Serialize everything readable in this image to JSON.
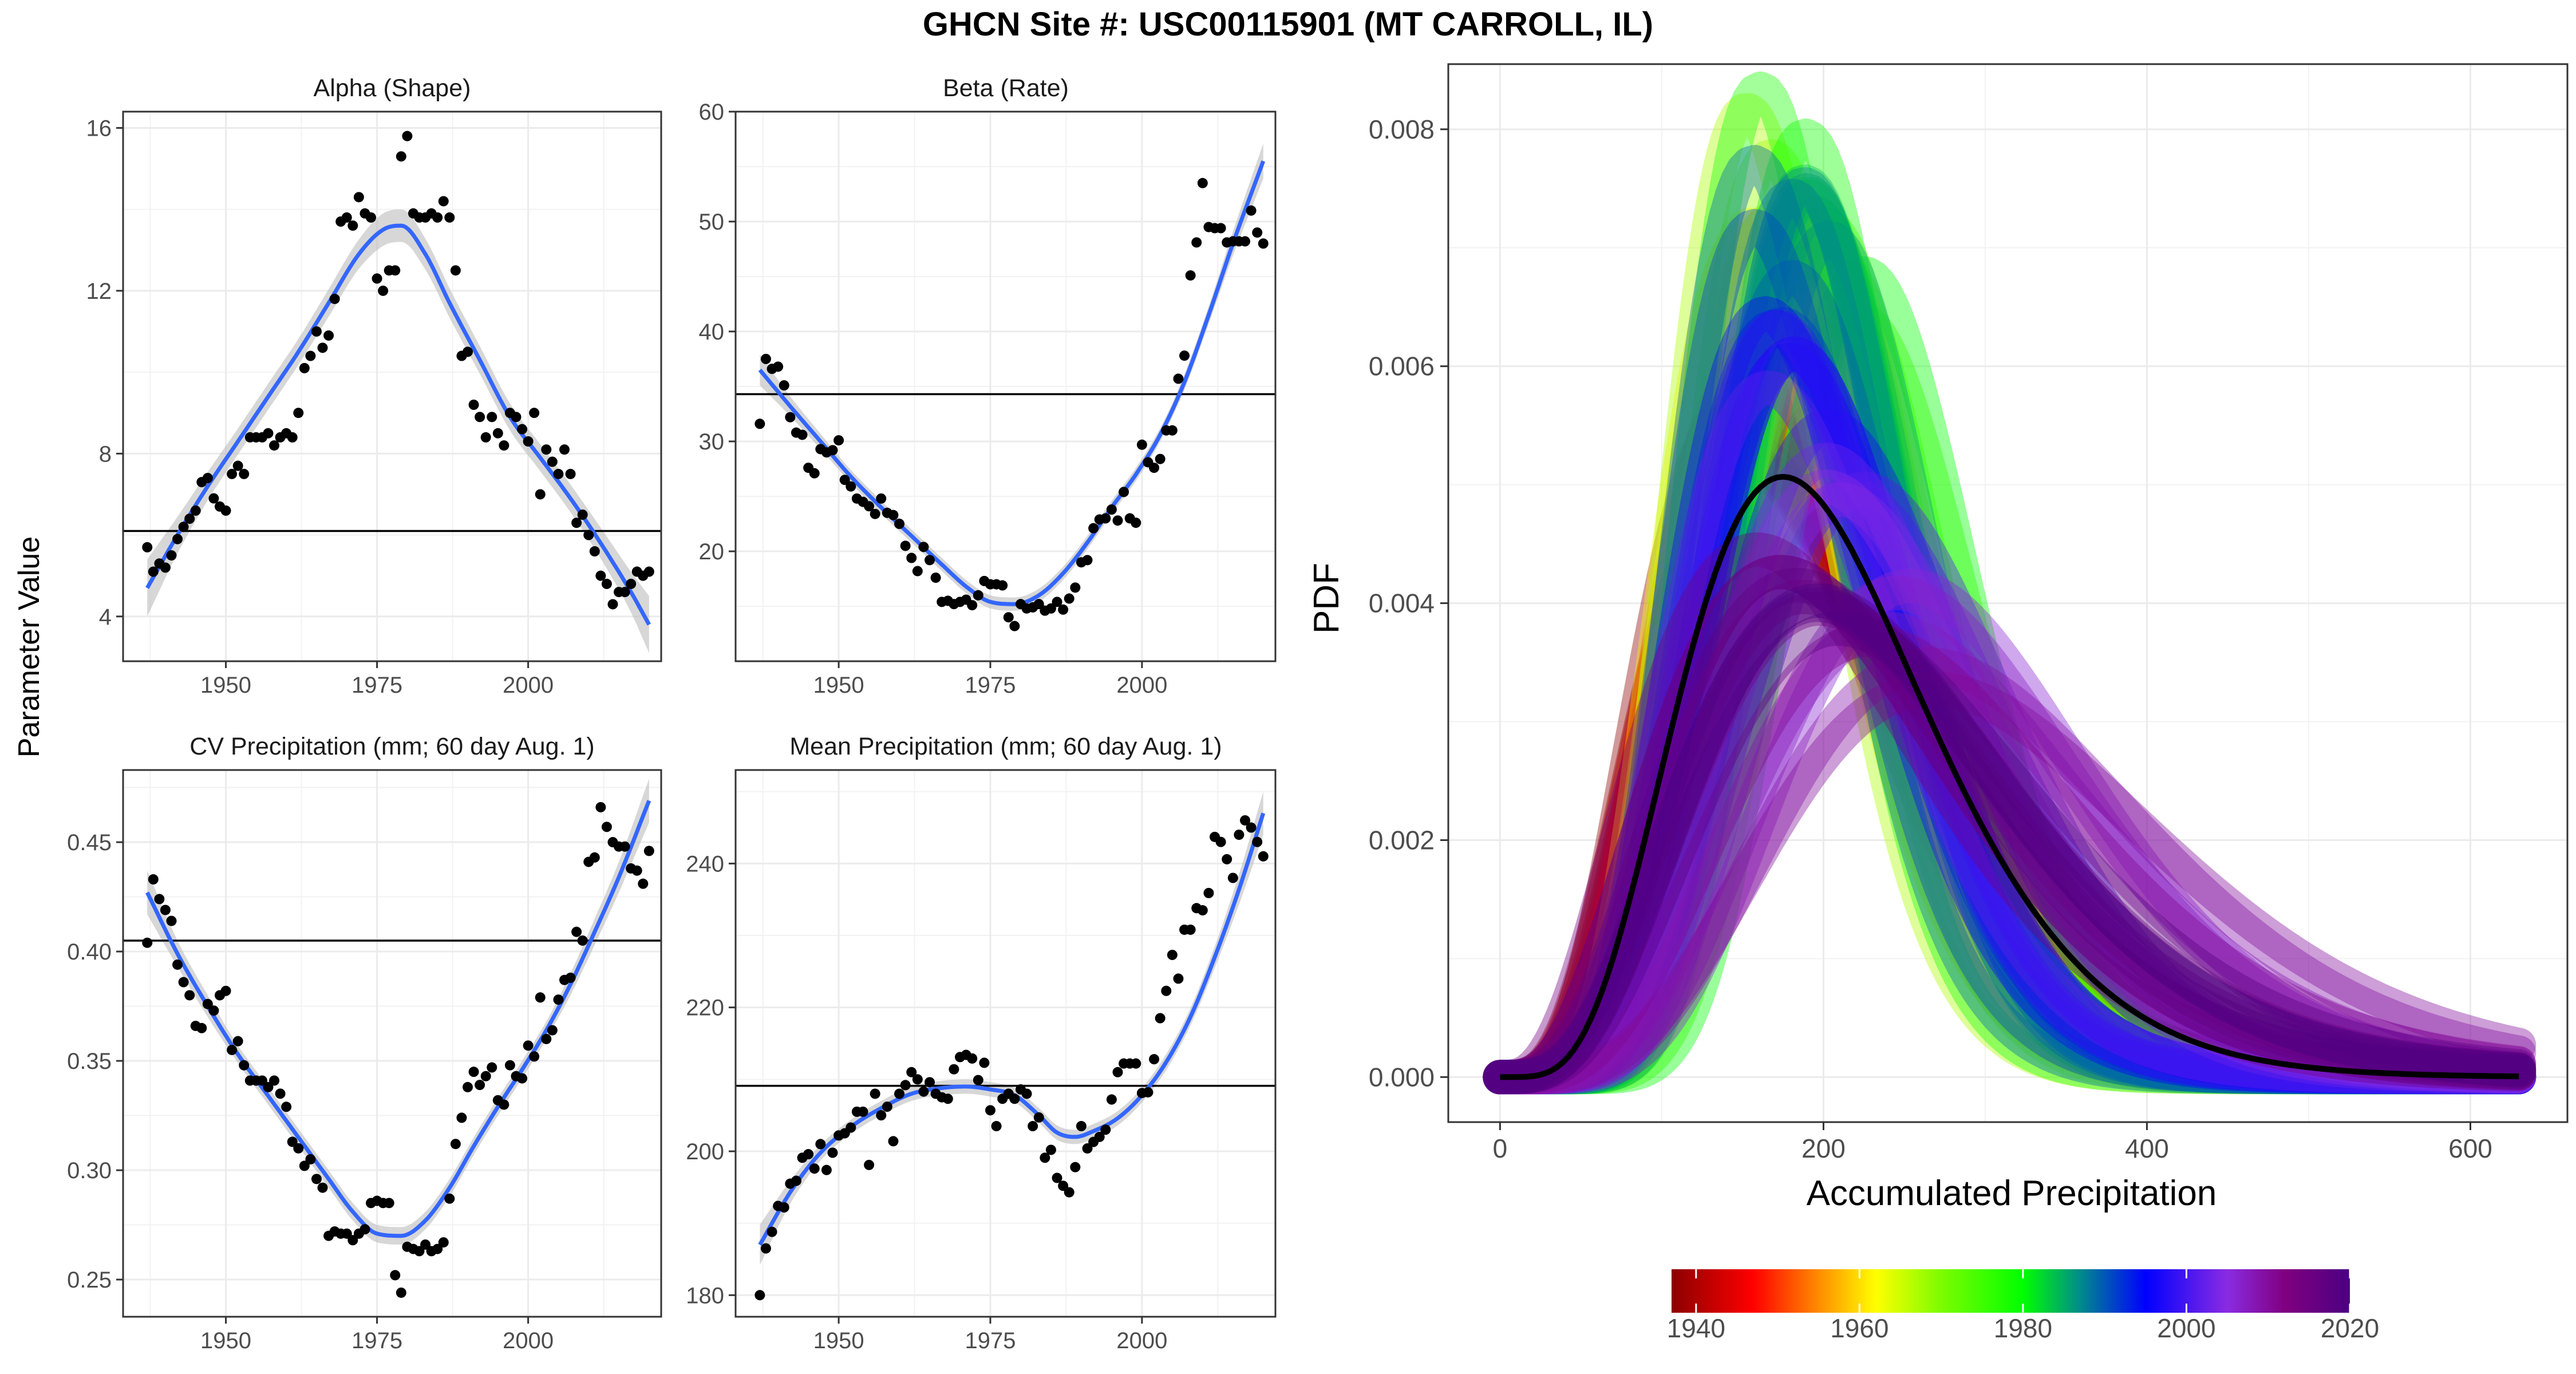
{
  "title": "GHCN Site #: USC00115901 (MT CARROLL, IL)",
  "shared_ylabel": "Parameter Value",
  "colors": {
    "smooth": "#3366ff",
    "ribbon": "#bdbdbd",
    "points": "#000000",
    "refline": "#000000"
  },
  "chart_data": [
    {
      "id": "alpha",
      "type": "scatter",
      "title": "Alpha (Shape)",
      "xlim": [
        1933,
        2022
      ],
      "ylim": [
        2.9,
        16.4
      ],
      "xticks": [
        1950,
        1975,
        2000
      ],
      "yticks": [
        4,
        8,
        12,
        16
      ],
      "hline": 6.1,
      "x": [
        1937,
        1938,
        1939,
        1940,
        1941,
        1942,
        1943,
        1944,
        1945,
        1946,
        1947,
        1948,
        1949,
        1950,
        1951,
        1952,
        1953,
        1954,
        1955,
        1956,
        1957,
        1958,
        1959,
        1960,
        1961,
        1962,
        1963,
        1964,
        1965,
        1966,
        1967,
        1968,
        1969,
        1970,
        1971,
        1972,
        1973,
        1974,
        1975,
        1976,
        1977,
        1978,
        1979,
        1980,
        1981,
        1982,
        1983,
        1984,
        1985,
        1986,
        1987,
        1988,
        1989,
        1990,
        1991,
        1992,
        1993,
        1994,
        1995,
        1996,
        1997,
        1998,
        1999,
        2000,
        2001,
        2002,
        2003,
        2004,
        2005,
        2006,
        2007,
        2008,
        2009,
        2010,
        2011,
        2012,
        2013,
        2014,
        2015,
        2016,
        2017,
        2018,
        2019,
        2020
      ],
      "y": [
        5.7,
        5.1,
        5.3,
        5.2,
        5.5,
        5.9,
        6.2,
        6.4,
        6.6,
        7.3,
        7.4,
        6.9,
        6.7,
        6.6,
        7.5,
        7.7,
        7.5,
        8.4,
        8.4,
        8.4,
        8.5,
        8.2,
        8.4,
        8.5,
        8.4,
        9.0,
        10.1,
        10.4,
        11.0,
        10.6,
        10.9,
        11.8,
        13.7,
        13.8,
        13.6,
        14.3,
        13.9,
        13.8,
        12.3,
        12.0,
        12.5,
        12.5,
        15.3,
        15.8,
        13.9,
        13.8,
        13.8,
        13.9,
        13.8,
        14.2,
        13.8,
        12.5,
        10.4,
        10.5,
        9.2,
        8.9,
        8.4,
        8.9,
        8.5,
        8.2,
        9.0,
        8.9,
        8.6,
        8.3,
        9.0,
        7.0,
        8.1,
        7.8,
        7.5,
        8.1,
        7.5,
        6.3,
        6.5,
        6.0,
        5.6,
        5.0,
        4.8,
        4.3,
        4.6,
        4.6,
        4.8,
        5.1,
        5.0,
        5.1
      ],
      "smooth_x": [
        1937,
        1942,
        1947,
        1952,
        1957,
        1962,
        1967,
        1972,
        1976,
        1979,
        1983,
        1987,
        1992,
        1997,
        2002,
        2007,
        2012,
        2017,
        2020
      ],
      "smooth_y": [
        4.7,
        6.0,
        7.2,
        8.3,
        9.4,
        10.5,
        11.7,
        12.9,
        13.5,
        13.6,
        12.9,
        11.7,
        10.3,
        8.9,
        7.9,
        6.9,
        5.8,
        4.6,
        3.8
      ],
      "smooth_se": [
        0.7,
        0.45,
        0.35,
        0.32,
        0.32,
        0.32,
        0.34,
        0.36,
        0.4,
        0.4,
        0.38,
        0.36,
        0.34,
        0.33,
        0.33,
        0.34,
        0.38,
        0.5,
        0.7
      ]
    },
    {
      "id": "beta",
      "type": "scatter",
      "title": "Beta (Rate)",
      "xlim": [
        1933,
        2022
      ],
      "ylim": [
        10,
        60
      ],
      "xticks": [
        1950,
        1975,
        2000
      ],
      "yticks": [
        20,
        30,
        40,
        50,
        60
      ],
      "hline": 34.3,
      "x": [
        1937,
        1938,
        1939,
        1940,
        1941,
        1942,
        1943,
        1944,
        1945,
        1946,
        1947,
        1948,
        1949,
        1950,
        1951,
        1952,
        1953,
        1954,
        1955,
        1956,
        1957,
        1958,
        1959,
        1960,
        1961,
        1962,
        1963,
        1964,
        1965,
        1966,
        1967,
        1968,
        1969,
        1970,
        1971,
        1972,
        1973,
        1974,
        1975,
        1976,
        1977,
        1978,
        1979,
        1980,
        1981,
        1982,
        1983,
        1984,
        1985,
        1986,
        1987,
        1988,
        1989,
        1990,
        1991,
        1992,
        1993,
        1994,
        1995,
        1996,
        1997,
        1998,
        1999,
        2000,
        2001,
        2002,
        2003,
        2004,
        2005,
        2006,
        2007,
        2008,
        2009,
        2010,
        2011,
        2012,
        2013,
        2014,
        2015,
        2016,
        2017,
        2018,
        2019,
        2020
      ],
      "y": [
        31.6,
        37.5,
        36.6,
        36.8,
        35.1,
        32.2,
        30.8,
        30.6,
        27.6,
        27.1,
        29.3,
        29.0,
        29.2,
        30.1,
        26.5,
        25.9,
        24.8,
        24.5,
        24.1,
        23.4,
        24.8,
        23.5,
        23.3,
        22.5,
        20.5,
        19.4,
        18.2,
        20.4,
        19.2,
        17.6,
        15.4,
        15.5,
        15.2,
        15.4,
        15.6,
        15.1,
        16.0,
        17.3,
        17.0,
        17.0,
        16.9,
        14.0,
        13.2,
        15.2,
        14.8,
        14.9,
        15.2,
        14.6,
        14.8,
        15.4,
        14.7,
        15.7,
        16.7,
        19.0,
        19.2,
        22.1,
        22.9,
        23.0,
        23.8,
        22.8,
        25.4,
        23.0,
        22.6,
        29.7,
        28.1,
        27.6,
        28.4,
        31.0,
        31.0,
        35.7,
        37.8,
        45.1,
        48.1,
        53.5,
        49.5,
        49.4,
        49.4,
        48.1,
        48.2,
        48.2,
        48.2,
        51.0,
        49.0,
        48.0
      ],
      "smooth_x": [
        1937,
        1942,
        1947,
        1952,
        1957,
        1962,
        1967,
        1971,
        1975,
        1979,
        1983,
        1987,
        1991,
        1995,
        1999,
        2003,
        2007,
        2011,
        2015,
        2020
      ],
      "smooth_y": [
        36.5,
        33.2,
        30.0,
        26.8,
        24.0,
        21.4,
        18.8,
        16.8,
        15.4,
        15.2,
        16.0,
        18.0,
        20.8,
        24.0,
        27.0,
        30.6,
        35.4,
        41.5,
        48.0,
        55.5
      ],
      "smooth_se": [
        1.4,
        0.9,
        0.7,
        0.6,
        0.6,
        0.6,
        0.6,
        0.6,
        0.6,
        0.6,
        0.6,
        0.6,
        0.6,
        0.6,
        0.6,
        0.6,
        0.7,
        0.8,
        1.1,
        1.6
      ]
    },
    {
      "id": "cv",
      "type": "scatter",
      "title": "CV Precipitation (mm; 60 day Aug. 1)",
      "xlim": [
        1933,
        2022
      ],
      "ylim": [
        0.233,
        0.483
      ],
      "xticks": [
        1950,
        1975,
        2000
      ],
      "yticks": [
        0.25,
        0.3,
        0.35,
        0.4,
        0.45
      ],
      "ytick_labels": [
        "0.25",
        "0.30",
        "0.35",
        "0.40",
        "0.45"
      ],
      "hline": 0.405,
      "x": [
        1937,
        1938,
        1939,
        1940,
        1941,
        1942,
        1943,
        1944,
        1945,
        1946,
        1947,
        1948,
        1949,
        1950,
        1951,
        1952,
        1953,
        1954,
        1955,
        1956,
        1957,
        1958,
        1959,
        1960,
        1961,
        1962,
        1963,
        1964,
        1965,
        1966,
        1967,
        1968,
        1969,
        1970,
        1971,
        1972,
        1973,
        1974,
        1975,
        1976,
        1977,
        1978,
        1979,
        1980,
        1981,
        1982,
        1983,
        1984,
        1985,
        1986,
        1987,
        1988,
        1989,
        1990,
        1991,
        1992,
        1993,
        1994,
        1995,
        1996,
        1997,
        1998,
        1999,
        2000,
        2001,
        2002,
        2003,
        2004,
        2005,
        2006,
        2007,
        2008,
        2009,
        2010,
        2011,
        2012,
        2013,
        2014,
        2015,
        2016,
        2017,
        2018,
        2019,
        2020
      ],
      "y": [
        0.404,
        0.433,
        0.424,
        0.419,
        0.414,
        0.394,
        0.386,
        0.38,
        0.366,
        0.365,
        0.376,
        0.373,
        0.38,
        0.382,
        0.355,
        0.359,
        0.348,
        0.341,
        0.341,
        0.341,
        0.338,
        0.341,
        0.335,
        0.329,
        0.313,
        0.31,
        0.302,
        0.305,
        0.296,
        0.292,
        0.27,
        0.272,
        0.271,
        0.271,
        0.268,
        0.271,
        0.273,
        0.285,
        0.286,
        0.285,
        0.285,
        0.252,
        0.244,
        0.265,
        0.264,
        0.263,
        0.266,
        0.263,
        0.264,
        0.267,
        0.287,
        0.312,
        0.324,
        0.338,
        0.345,
        0.339,
        0.343,
        0.347,
        0.332,
        0.33,
        0.348,
        0.343,
        0.342,
        0.357,
        0.352,
        0.379,
        0.36,
        0.364,
        0.378,
        0.387,
        0.388,
        0.409,
        0.405,
        0.441,
        0.443,
        0.466,
        0.457,
        0.45,
        0.448,
        0.448,
        0.438,
        0.437,
        0.431,
        0.446
      ],
      "smooth_x": [
        1937,
        1942,
        1947,
        1952,
        1957,
        1962,
        1967,
        1971,
        1975,
        1979,
        1983,
        1987,
        1991,
        1995,
        1999,
        2003,
        2007,
        2011,
        2015,
        2020
      ],
      "smooth_y": [
        0.427,
        0.399,
        0.375,
        0.353,
        0.334,
        0.315,
        0.296,
        0.281,
        0.271,
        0.27,
        0.277,
        0.292,
        0.311,
        0.329,
        0.346,
        0.364,
        0.385,
        0.409,
        0.434,
        0.469
      ],
      "smooth_se": [
        0.01,
        0.006,
        0.005,
        0.004,
        0.004,
        0.004,
        0.004,
        0.004,
        0.004,
        0.004,
        0.004,
        0.004,
        0.004,
        0.004,
        0.004,
        0.004,
        0.005,
        0.006,
        0.007,
        0.01
      ]
    },
    {
      "id": "mean",
      "type": "scatter",
      "title": "Mean Precipitation (mm; 60 day Aug. 1)",
      "xlim": [
        1933,
        2022
      ],
      "ylim": [
        177,
        253
      ],
      "xticks": [
        1950,
        1975,
        2000
      ],
      "yticks": [
        180,
        200,
        220,
        240
      ],
      "hline": 209.1,
      "x": [
        1937,
        1938,
        1939,
        1940,
        1941,
        1942,
        1943,
        1944,
        1945,
        1946,
        1947,
        1948,
        1949,
        1950,
        1951,
        1952,
        1953,
        1954,
        1955,
        1956,
        1957,
        1958,
        1959,
        1960,
        1961,
        1962,
        1963,
        1964,
        1965,
        1966,
        1967,
        1968,
        1969,
        1970,
        1971,
        1972,
        1973,
        1974,
        1975,
        1976,
        1977,
        1978,
        1979,
        1980,
        1981,
        1982,
        1983,
        1984,
        1985,
        1986,
        1987,
        1988,
        1989,
        1990,
        1991,
        1992,
        1993,
        1994,
        1995,
        1996,
        1997,
        1998,
        1999,
        2000,
        2001,
        2002,
        2003,
        2004,
        2005,
        2006,
        2007,
        2008,
        2009,
        2010,
        2011,
        2012,
        2013,
        2014,
        2015,
        2016,
        2017,
        2018,
        2019,
        2020
      ],
      "y": [
        180.0,
        186.5,
        188.8,
        192.4,
        192.2,
        195.5,
        195.9,
        199.1,
        199.6,
        197.6,
        201.0,
        197.4,
        199.8,
        202.2,
        202.5,
        203.3,
        205.5,
        205.5,
        198.1,
        208.0,
        205.0,
        206.2,
        201.4,
        208.0,
        209.2,
        211.0,
        210.0,
        208.3,
        209.6,
        208.0,
        207.5,
        207.3,
        211.4,
        213.1,
        213.4,
        212.9,
        209.9,
        212.3,
        205.7,
        203.5,
        207.3,
        208.0,
        207.3,
        208.6,
        208.0,
        203.5,
        204.7,
        199.1,
        200.2,
        196.3,
        195.2,
        194.3,
        197.8,
        203.5,
        200.4,
        201.3,
        202.0,
        203.0,
        207.2,
        211.0,
        212.2,
        212.2,
        212.2,
        208.1,
        208.2,
        212.8,
        218.5,
        222.3,
        227.3,
        224.0,
        230.8,
        230.8,
        233.8,
        233.5,
        235.9,
        243.7,
        243.0,
        240.6,
        238.0,
        244.0,
        246.0,
        245.0,
        243.0,
        241.0
      ],
      "smooth_x": [
        1937,
        1942,
        1947,
        1952,
        1957,
        1962,
        1967,
        1971,
        1975,
        1979,
        1983,
        1986,
        1989,
        1992,
        1996,
        2000,
        2004,
        2008,
        2012,
        2016,
        2020
      ],
      "smooth_y": [
        187.0,
        194.3,
        199.8,
        203.4,
        206.0,
        208.0,
        208.8,
        209.0,
        208.6,
        207.8,
        205.0,
        202.6,
        202.0,
        202.8,
        204.6,
        207.8,
        212.4,
        218.7,
        227.0,
        236.4,
        247.0
      ],
      "smooth_se": [
        2.8,
        1.6,
        1.1,
        1.0,
        1.0,
        1.0,
        1.0,
        1.0,
        1.0,
        1.0,
        1.0,
        1.0,
        1.0,
        1.0,
        1.0,
        1.0,
        1.1,
        1.2,
        1.5,
        2.1,
        3.0
      ]
    },
    {
      "id": "pdf",
      "type": "line",
      "xlabel": "Accumulated Precipitation",
      "ylabel": "PDF",
      "xlim": [
        -32,
        660
      ],
      "ylim": [
        -0.00038,
        0.00855
      ],
      "xticks": [
        0,
        200,
        400,
        600
      ],
      "yticks": [
        0,
        0.002,
        0.004,
        0.006,
        0.008
      ],
      "ytick_labels": [
        "0.000",
        "0.002",
        "0.004",
        "0.006",
        "0.008"
      ],
      "x_max": 630,
      "overall": {
        "alpha": 6.1,
        "beta": 34.3,
        "color": "#000000"
      },
      "colorbar": {
        "range": [
          1937,
          2020
        ],
        "ticks": [
          1940,
          1960,
          1980,
          2000,
          2020
        ],
        "stops": [
          {
            "year": 1937,
            "color": "#8b0000"
          },
          {
            "year": 1947,
            "color": "#ff0000"
          },
          {
            "year": 1955,
            "color": "#ff8c00"
          },
          {
            "year": 1962,
            "color": "#ffff00"
          },
          {
            "year": 1970,
            "color": "#7cfc00"
          },
          {
            "year": 1980,
            "color": "#00ff00"
          },
          {
            "year": 1987,
            "color": "#008b8b"
          },
          {
            "year": 1995,
            "color": "#0000ff"
          },
          {
            "year": 2005,
            "color": "#8a2be2"
          },
          {
            "year": 2012,
            "color": "#800080"
          },
          {
            "year": 2020,
            "color": "#4b0082"
          }
        ]
      }
    }
  ]
}
